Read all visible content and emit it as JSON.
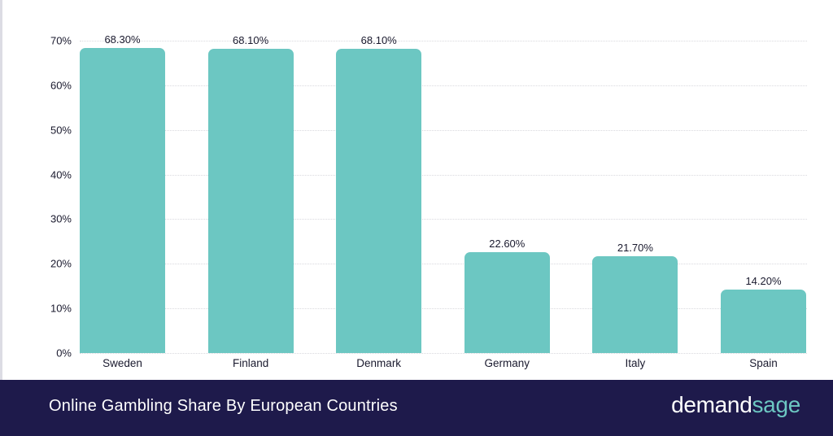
{
  "chart_data": {
    "type": "bar",
    "title": "Online Gambling Share By European Countries",
    "xlabel": "",
    "ylabel": "",
    "categories": [
      "Sweden",
      "Finland",
      "Denmark",
      "Germany",
      "Italy",
      "Spain"
    ],
    "values": [
      68.3,
      68.1,
      68.1,
      22.6,
      21.7,
      14.2
    ],
    "value_labels": [
      "68.30%",
      "68.10%",
      "68.10%",
      "22.60%",
      "21.70%",
      "14.20%"
    ],
    "ylim": [
      0,
      70
    ],
    "yticks": [
      "0%",
      "10%",
      "20%",
      "30%",
      "40%",
      "50%",
      "60%",
      "70%"
    ],
    "grid": true,
    "legend": "none",
    "bar_color": "#6cc7c2"
  },
  "footer": {
    "title": "Online Gambling Share By European Countries",
    "brand_part1": "demand",
    "brand_part2": "sage",
    "background": "#1e1a4b"
  }
}
